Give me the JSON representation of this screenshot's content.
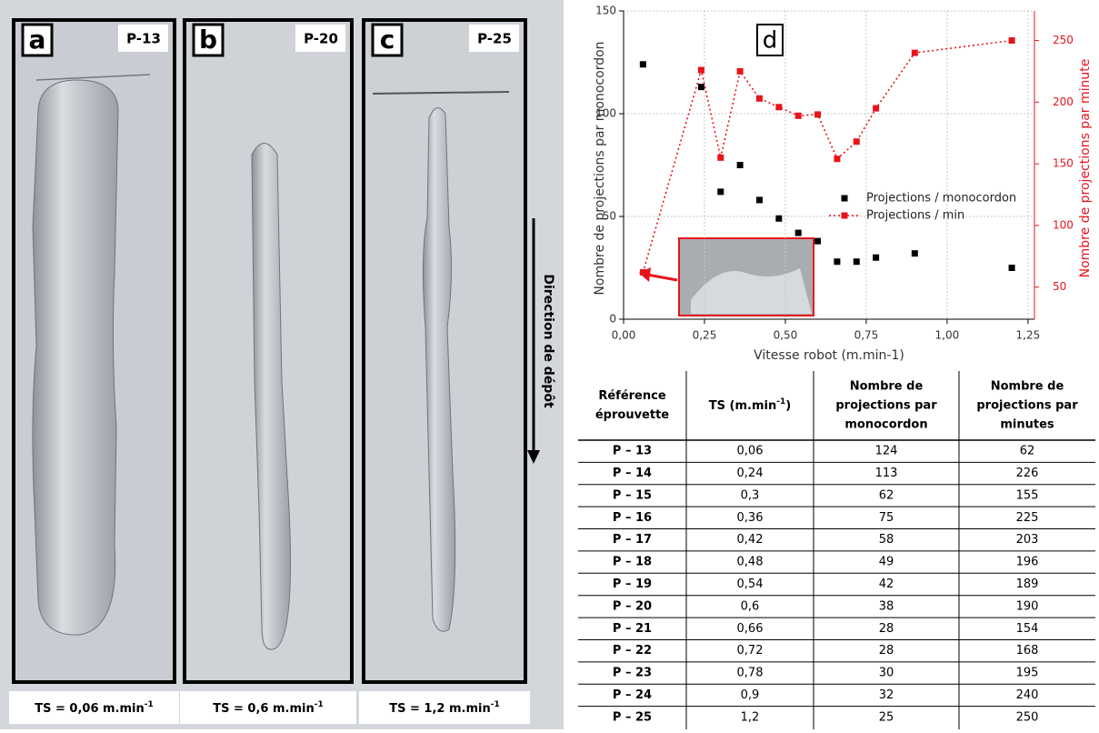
{
  "panels": [
    {
      "letter": "a",
      "ref": "P-13",
      "caption": [
        "TS = 0,06 m.min",
        "-1"
      ]
    },
    {
      "letter": "b",
      "ref": "P-20",
      "caption": [
        "TS = 0,6 m.min",
        "-1"
      ]
    },
    {
      "letter": "c",
      "ref": "P-25",
      "caption": [
        "TS = 1,2 m.min",
        "-1"
      ]
    }
  ],
  "direction": "Direction de dépôt",
  "chart_data": {
    "type": "scatter",
    "panel_label": "d",
    "x_label": "Vitesse robot (m.min-1)",
    "y_label": "Nombre de projections par monocordon",
    "y2_label": "Nombre de projections par minute",
    "x": [
      0.06,
      0.24,
      0.3,
      0.36,
      0.42,
      0.48,
      0.54,
      0.6,
      0.66,
      0.72,
      0.78,
      0.9,
      1.2
    ],
    "series": [
      {
        "name": "Projections / monocordon",
        "color": "#000000",
        "mode": "markers",
        "values": [
          124,
          113,
          62,
          75,
          58,
          49,
          42,
          38,
          28,
          28,
          30,
          32,
          25
        ]
      },
      {
        "name": "Projections / min",
        "color": "#e8141a",
        "mode": "lines+markers",
        "axis": "y2",
        "values": [
          62,
          226,
          155,
          225,
          203,
          196,
          189,
          190,
          154,
          168,
          195,
          240,
          250
        ]
      }
    ],
    "xlim": [
      0,
      1.27
    ],
    "xticks": [
      {
        "value": 0,
        "label": "0,00"
      },
      {
        "value": 0.25,
        "label": "0,25"
      },
      {
        "value": 0.5,
        "label": "0,50"
      },
      {
        "value": 0.75,
        "label": "0,75"
      },
      {
        "value": 1,
        "label": "1,00"
      },
      {
        "value": 1.25,
        "label": "1,25"
      }
    ],
    "ylim": [
      0,
      150
    ],
    "yticks": [
      0,
      50,
      100,
      150
    ],
    "y2lim": [
      24,
      274
    ],
    "y2ticks": [
      50,
      100,
      150,
      200,
      250
    ],
    "grid": true
  },
  "table": {
    "columns": [
      [
        "Référence",
        "éprouvette"
      ],
      [
        "TS (m.min",
        "-1",
        ")"
      ],
      [
        "Nombre de",
        "projections par",
        "monocordon"
      ],
      [
        "Nombre de",
        "projections par",
        "minutes"
      ]
    ],
    "rows": [
      [
        "P – 13",
        "0,06",
        "124",
        "62"
      ],
      [
        "P – 14",
        "0,24",
        "113",
        "226"
      ],
      [
        "P – 15",
        "0,3",
        "62",
        "155"
      ],
      [
        "P – 16",
        "0,36",
        "75",
        "225"
      ],
      [
        "P – 17",
        "0,42",
        "58",
        "203"
      ],
      [
        "P – 18",
        "0,48",
        "49",
        "196"
      ],
      [
        "P – 19",
        "0,54",
        "42",
        "189"
      ],
      [
        "P – 20",
        "0,6",
        "38",
        "190"
      ],
      [
        "P – 21",
        "0,66",
        "28",
        "154"
      ],
      [
        "P – 22",
        "0,72",
        "28",
        "168"
      ],
      [
        "P – 23",
        "0,78",
        "30",
        "195"
      ],
      [
        "P – 24",
        "0,9",
        "32",
        "240"
      ],
      [
        "P – 25",
        "1,2",
        "25",
        "250"
      ]
    ]
  }
}
